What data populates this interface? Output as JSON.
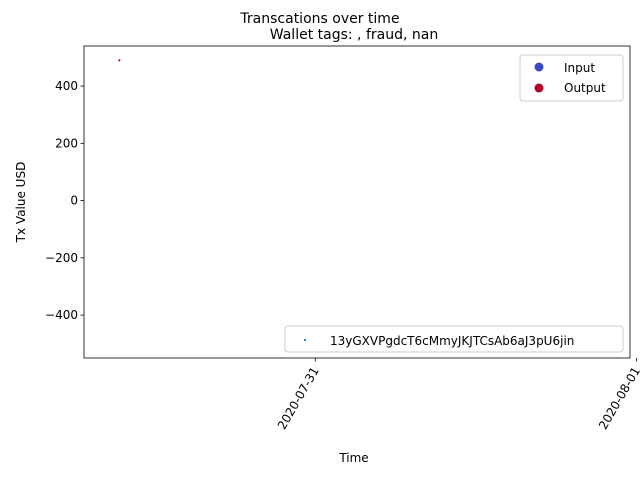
{
  "chart_data": {
    "type": "scatter",
    "suptitle": "Transcations over time",
    "title": "Wallet tags: , fraud, nan",
    "xlabel": "Time",
    "ylabel": "Tx Value USD",
    "x_tick_labels": [
      "2020-07-31",
      "2020-08-01"
    ],
    "x_tick_dates_days": [
      0,
      1
    ],
    "x_range_days": [
      -0.72,
      0.98
    ],
    "ylim": [
      -550,
      540
    ],
    "y_ticks": [
      -400,
      -200,
      0,
      200,
      400
    ],
    "y_tick_labels": [
      "−400",
      "−200",
      "0",
      "200",
      "400"
    ],
    "points": [
      {
        "x_days": -0.61,
        "y": 490,
        "kind": "Output"
      }
    ],
    "legend_direction": {
      "placement": "upper right",
      "entries": [
        {
          "label": "Input",
          "color": "#3b4cc0"
        },
        {
          "label": "Output",
          "color": "#b40426"
        }
      ]
    },
    "legend_wallet": {
      "placement": "lower right",
      "label": "13yGXVPgdcT6cMmyJKJTCsAb6aJ3pU6jin",
      "color": "#1f77b4"
    },
    "grid": false
  }
}
